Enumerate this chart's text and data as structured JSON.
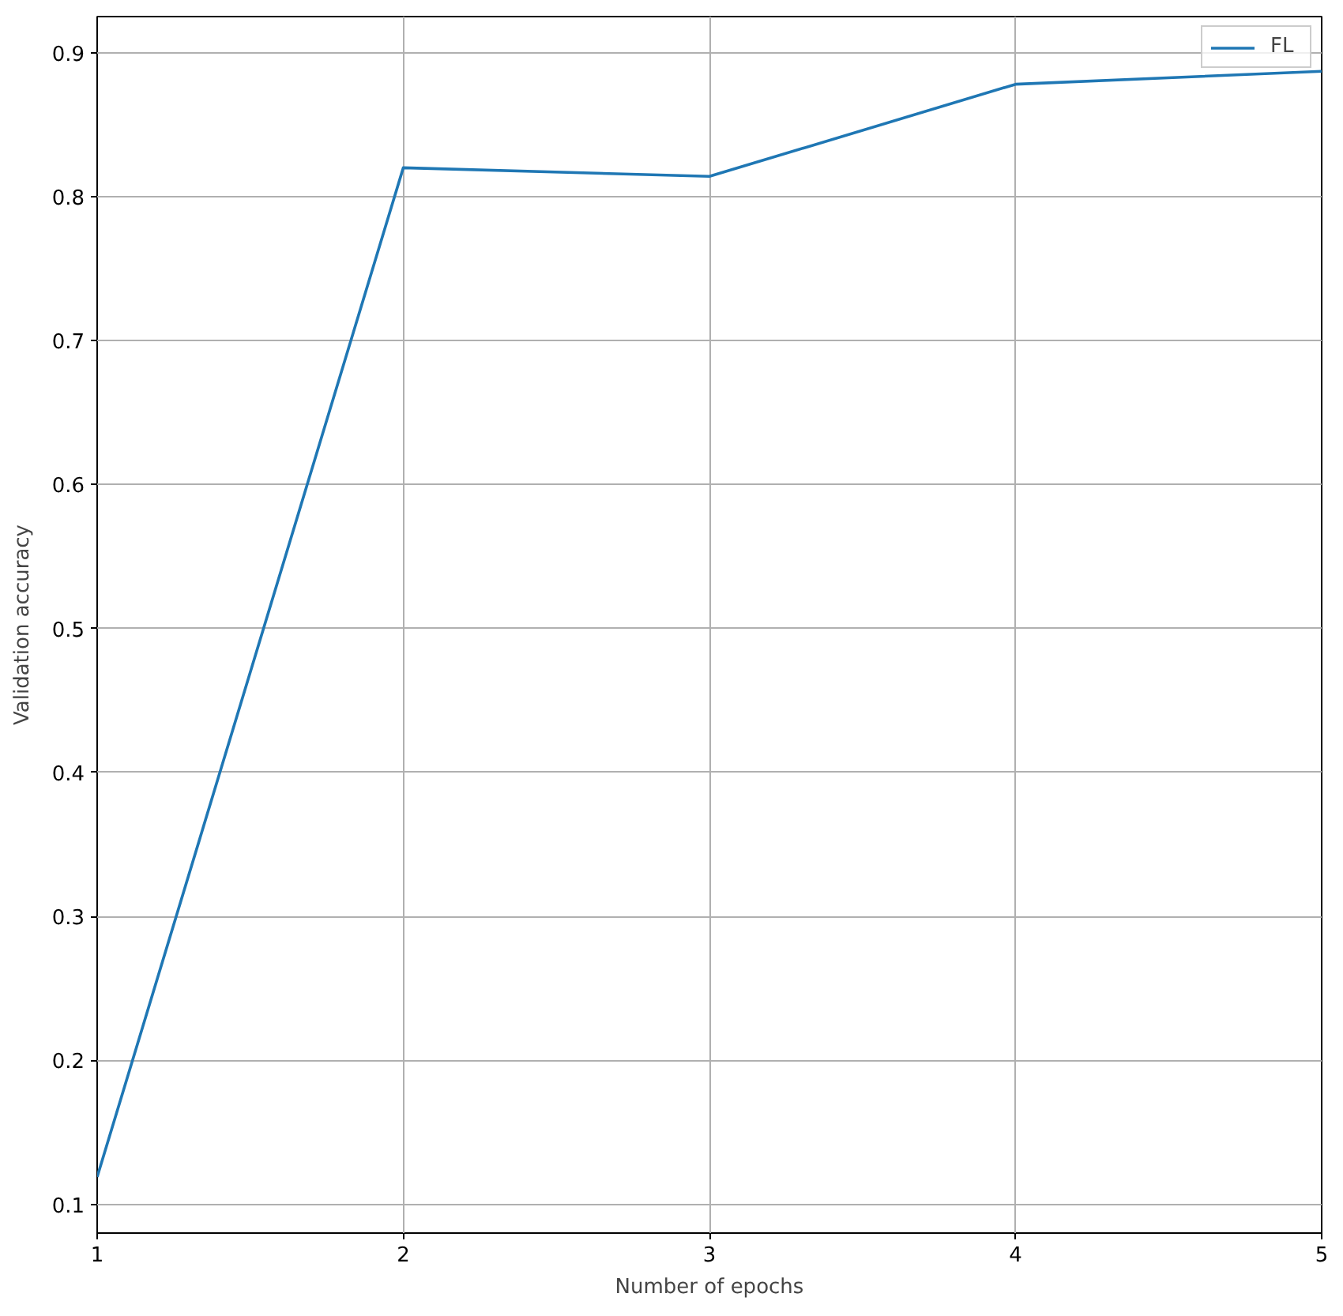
{
  "chart_data": {
    "type": "line",
    "xlabel": "Number of epochs",
    "ylabel": "Validation accuracy",
    "x": [
      1,
      2,
      3,
      4,
      5
    ],
    "series": [
      {
        "name": "FL",
        "color": "#1f77b4",
        "values": [
          0.119,
          0.82,
          0.814,
          0.878,
          0.887
        ]
      }
    ],
    "xlim": [
      1,
      5
    ],
    "ylim": [
      0.08,
      0.925
    ],
    "xticks": [
      1,
      2,
      3,
      4,
      5
    ],
    "yticks": [
      0.1,
      0.2,
      0.3,
      0.4,
      0.5,
      0.6,
      0.7,
      0.8,
      0.9
    ],
    "grid": true,
    "legend": "top right",
    "marker": "none",
    "line_style": "solid"
  }
}
